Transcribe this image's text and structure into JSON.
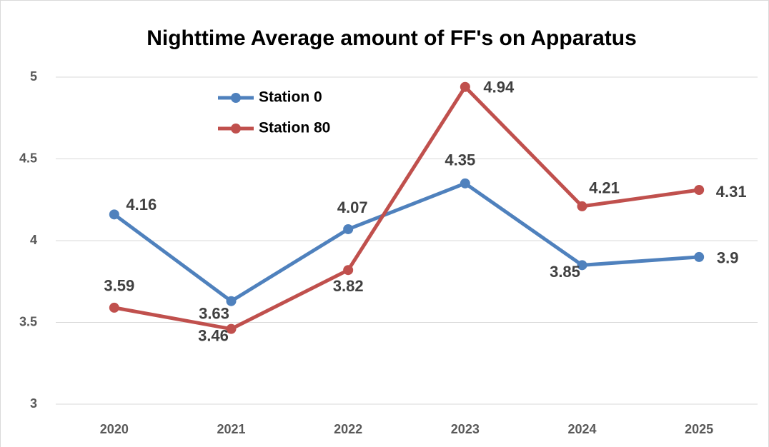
{
  "chart_data": {
    "type": "line",
    "title": "Nighttime Average amount of FF's on Apparatus",
    "categories": [
      "2020",
      "2021",
      "2022",
      "2023",
      "2024",
      "2025"
    ],
    "series": [
      {
        "name": "Station 0",
        "color": "#4f81bd",
        "values": [
          4.16,
          3.63,
          4.07,
          4.35,
          3.85,
          3.9
        ]
      },
      {
        "name": "Station 80",
        "color": "#c0504d",
        "values": [
          3.59,
          3.46,
          3.82,
          4.94,
          4.21,
          4.31
        ]
      }
    ],
    "ylim": [
      3,
      5
    ],
    "yticks": [
      3,
      3.5,
      4,
      4.5,
      5
    ],
    "grid": true,
    "legend": "upper-left"
  }
}
